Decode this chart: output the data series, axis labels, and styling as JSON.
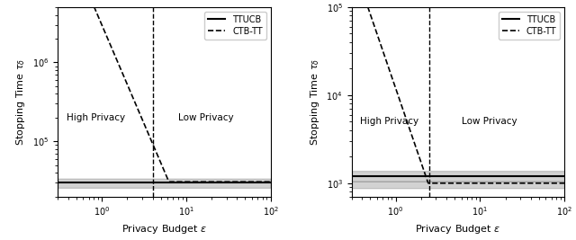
{
  "subplot1": {
    "xlim": [
      0.3,
      100
    ],
    "ylim": [
      20000,
      5000000
    ],
    "vline_x": 4.0,
    "ttucb_y": 30000,
    "ttucb_fill_lower": 26000,
    "ttucb_fill_upper": 34000,
    "ctb_coeff": 3000000,
    "ctb_exponent": 2.5,
    "ctb_flat_y": 31000,
    "ylabel": "Stopping Time $\\tau_\\delta$",
    "xlabel": "Privacy Budget $\\varepsilon$",
    "high_privacy_label": "High Privacy",
    "low_privacy_label": "Low Privacy",
    "high_privacy_x": 0.38,
    "high_privacy_y": 200000,
    "low_privacy_x": 8.0,
    "low_privacy_y": 200000
  },
  "subplot2": {
    "xlim": [
      0.3,
      100
    ],
    "ylim": [
      700,
      100000
    ],
    "vline_x": 2.5,
    "ttucb_y": 1200,
    "ttucb_fill_lower": 1050,
    "ttucb_fill_upper": 1380,
    "ctb_coeff": 12000,
    "ctb_exponent": 2.8,
    "ctb_flat_y": 1000,
    "ctb_fill_lower": 880,
    "ctb_fill_upper": 1050,
    "ylabel": "Stopping Time $\\tau_\\delta$",
    "xlabel": "Privacy Budget $\\varepsilon$",
    "high_privacy_label": "High Privacy",
    "low_privacy_label": "Low Privacy",
    "high_privacy_x": 0.38,
    "high_privacy_y": 5000,
    "low_privacy_x": 6.0,
    "low_privacy_y": 5000
  },
  "legend_labels": [
    "TTUCB",
    "CTB-TT"
  ],
  "line_color": "black",
  "fill_color": "gray",
  "fill_alpha": 0.35
}
